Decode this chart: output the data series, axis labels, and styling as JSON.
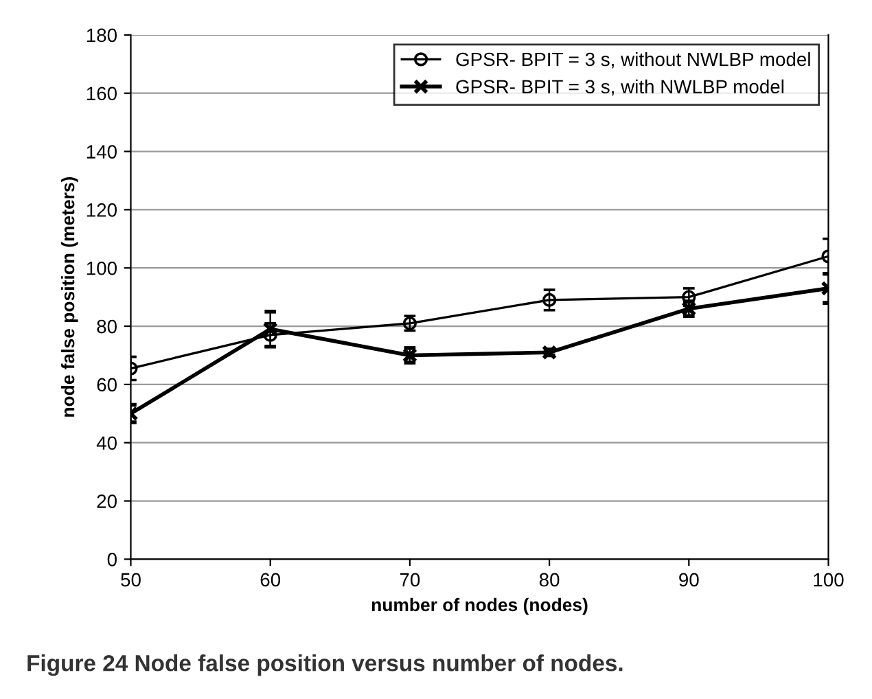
{
  "chart_data": {
    "type": "line",
    "xlabel": "number of nodes (nodes)",
    "ylabel": "node false position (meters)",
    "x": [
      50,
      60,
      70,
      80,
      90,
      100
    ],
    "series": [
      {
        "name": "GPSR- BPIT = 3 s, without NWLBP model",
        "color": "#000000",
        "marker": "circle",
        "values": [
          65.5,
          77,
          81,
          89,
          90,
          104
        ],
        "errors": [
          4,
          4,
          2.5,
          3.5,
          3,
          6
        ]
      },
      {
        "name": "GPSR- BPIT = 3 s, with NWLBP model",
        "color": "#000000",
        "marker": "cross",
        "values": [
          50,
          79,
          70,
          71,
          86,
          93
        ],
        "errors": [
          3,
          6,
          2.5,
          1,
          2.5,
          5
        ]
      }
    ],
    "xlim": [
      50,
      100
    ],
    "xticks": [
      50,
      60,
      70,
      80,
      90,
      100
    ],
    "ylim": [
      0,
      180
    ],
    "yticks": [
      0,
      20,
      40,
      60,
      80,
      100,
      120,
      140,
      160,
      180
    ],
    "grid": "y",
    "legend": "top right",
    "line_style": "solid",
    "annotations": [
      "Figure 24 Node false position versus number of nodes."
    ]
  }
}
